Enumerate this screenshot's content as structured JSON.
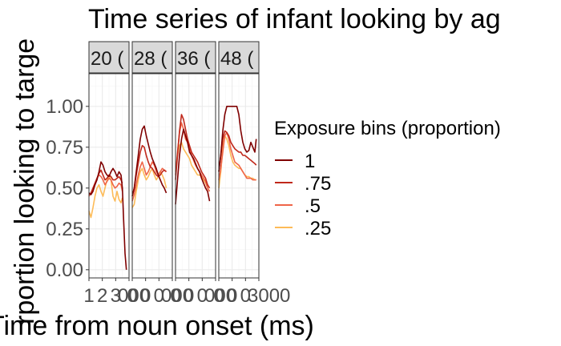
{
  "chart_data": {
    "type": "line",
    "title": "Time series of infant looking by ag",
    "xlabel": "Time from noun onset (ms)",
    "ylabel": "rportion looking to targe",
    "ylim": [
      -0.05,
      1.2
    ],
    "xlim": [
      0,
      3000
    ],
    "y_ticks": [
      0.0,
      0.25,
      0.5,
      0.75,
      1.0
    ],
    "y_tick_labels": [
      "0.00",
      "0.25",
      "0.50",
      "0.75",
      "1.00"
    ],
    "x_tick_values": [
      0,
      1000,
      2000,
      3000
    ],
    "x_tick_labels_per_panel": [
      [
        "1",
        "2",
        "3",
        "000"
      ],
      [
        "0",
        "0",
        "0",
        "000"
      ],
      [
        "0",
        "0",
        "0",
        "000"
      ],
      [
        "0",
        "0",
        "0",
        "3000"
      ]
    ],
    "grid": true,
    "legend": {
      "title": "Exposure bins (proportion)",
      "position": "right"
    },
    "facets": [
      {
        "label": "20 (",
        "series": [
          {
            "name": "1",
            "x": [
              0,
              150,
              300,
              450,
              600,
              750,
              900,
              1050,
              1200,
              1350,
              1500,
              1650,
              1800,
              1950,
              2100,
              2250,
              2400,
              2500,
              2600,
              2700,
              2800
            ],
            "y": [
              0.47,
              0.46,
              0.48,
              0.52,
              0.55,
              0.6,
              0.66,
              0.64,
              0.6,
              0.58,
              0.57,
              0.6,
              0.62,
              0.6,
              0.57,
              0.6,
              0.58,
              0.5,
              0.3,
              0.1,
              0.0
            ]
          },
          {
            "name": ".75",
            "x": [
              0,
              150,
              300,
              450,
              600,
              750,
              900,
              1050,
              1200,
              1350,
              1500,
              1650,
              1800,
              1950,
              2100,
              2250,
              2400,
              2500
            ],
            "y": [
              0.46,
              0.47,
              0.5,
              0.53,
              0.56,
              0.59,
              0.61,
              0.58,
              0.55,
              0.56,
              0.58,
              0.57,
              0.55,
              0.55,
              0.56,
              0.57,
              0.55,
              0.53
            ]
          },
          {
            "name": ".5",
            "x": [
              0,
              150,
              300,
              450,
              600,
              750,
              900,
              1050,
              1200,
              1350,
              1500,
              1650,
              1800,
              1950,
              2100,
              2250,
              2400,
              2500
            ],
            "y": [
              0.45,
              0.47,
              0.49,
              0.52,
              0.56,
              0.58,
              0.57,
              0.55,
              0.52,
              0.54,
              0.56,
              0.55,
              0.52,
              0.5,
              0.51,
              0.53,
              0.52,
              0.48
            ]
          },
          {
            "name": ".25",
            "x": [
              0,
              150,
              300,
              450,
              600,
              750,
              900,
              1050,
              1200,
              1350,
              1500,
              1650,
              1800,
              1950,
              2100,
              2250,
              2400,
              2500
            ],
            "y": [
              0.36,
              0.32,
              0.38,
              0.45,
              0.5,
              0.52,
              0.48,
              0.45,
              0.5,
              0.55,
              0.58,
              0.55,
              0.45,
              0.42,
              0.48,
              0.43,
              0.41,
              0.44
            ]
          }
        ]
      },
      {
        "label": "28 (",
        "series": [
          {
            "name": "1",
            "x": [
              0,
              150,
              300,
              450,
              600,
              750,
              900,
              1050,
              1200,
              1350,
              1500,
              1650,
              1800,
              1950,
              2100,
              2250,
              2400,
              2550
            ],
            "y": [
              0.45,
              0.5,
              0.6,
              0.7,
              0.8,
              0.86,
              0.88,
              0.82,
              0.77,
              0.72,
              0.68,
              0.65,
              0.62,
              0.58,
              0.55,
              0.52,
              0.5,
              0.47
            ]
          },
          {
            "name": ".75",
            "x": [
              0,
              150,
              300,
              450,
              600,
              750,
              900,
              1050,
              1200,
              1350,
              1500,
              1650,
              1800,
              1950,
              2100,
              2250,
              2400,
              2550
            ],
            "y": [
              0.45,
              0.5,
              0.58,
              0.65,
              0.72,
              0.76,
              0.75,
              0.7,
              0.66,
              0.63,
              0.62,
              0.6,
              0.58,
              0.57,
              0.58,
              0.6,
              0.61,
              0.6
            ]
          },
          {
            "name": ".5",
            "x": [
              0,
              150,
              300,
              450,
              600,
              750,
              900,
              1050,
              1200,
              1350,
              1500,
              1650,
              1800,
              1950,
              2100,
              2250,
              2400,
              2550
            ],
            "y": [
              0.42,
              0.46,
              0.52,
              0.58,
              0.63,
              0.66,
              0.62,
              0.58,
              0.6,
              0.63,
              0.66,
              0.64,
              0.6,
              0.58,
              0.6,
              0.62,
              0.61,
              0.6
            ]
          },
          {
            "name": ".25",
            "x": [
              0,
              150,
              300,
              450,
              600,
              750,
              900,
              1050,
              1200,
              1350,
              1500,
              1650,
              1800,
              1950,
              2100,
              2250,
              2400,
              2550
            ],
            "y": [
              0.38,
              0.4,
              0.48,
              0.55,
              0.6,
              0.62,
              0.58,
              0.55,
              0.57,
              0.6,
              0.62,
              0.58,
              0.55,
              0.57,
              0.6,
              0.58,
              0.55,
              0.5
            ]
          }
        ]
      },
      {
        "label": "36 (",
        "series": [
          {
            "name": "1",
            "x": [
              0,
              150,
              300,
              450,
              600,
              750,
              900,
              1050,
              1200,
              1350,
              1500,
              1650,
              1800,
              1950,
              2100,
              2250,
              2400,
              2550
            ],
            "y": [
              0.4,
              0.55,
              0.7,
              0.8,
              0.86,
              0.82,
              0.78,
              0.72,
              0.7,
              0.68,
              0.65,
              0.62,
              0.6,
              0.56,
              0.53,
              0.5,
              0.48,
              0.42
            ]
          },
          {
            "name": ".75",
            "x": [
              0,
              150,
              300,
              450,
              600,
              750,
              900,
              1050,
              1200,
              1350,
              1500,
              1650,
              1800,
              1950,
              2100,
              2250,
              2400,
              2550
            ],
            "y": [
              0.55,
              0.7,
              0.85,
              0.95,
              0.92,
              0.86,
              0.8,
              0.76,
              0.72,
              0.7,
              0.68,
              0.66,
              0.63,
              0.6,
              0.58,
              0.56,
              0.52,
              0.5
            ]
          },
          {
            "name": ".5",
            "x": [
              0,
              150,
              300,
              450,
              600,
              750,
              900,
              1050,
              1200,
              1350,
              1500,
              1650,
              1800,
              1950,
              2100,
              2250,
              2400,
              2550
            ],
            "y": [
              0.58,
              0.72,
              0.84,
              0.9,
              0.86,
              0.8,
              0.78,
              0.74,
              0.7,
              0.67,
              0.64,
              0.62,
              0.6,
              0.58,
              0.56,
              0.54,
              0.5,
              0.48
            ]
          },
          {
            "name": ".25",
            "x": [
              0,
              150,
              300,
              450,
              600,
              750,
              900,
              1050,
              1200,
              1350,
              1500,
              1650,
              1800,
              1950,
              2100,
              2250,
              2400,
              2550
            ],
            "y": [
              0.6,
              0.7,
              0.76,
              0.78,
              0.74,
              0.72,
              0.7,
              0.68,
              0.64,
              0.62,
              0.6,
              0.58,
              0.58,
              0.57,
              0.55,
              0.53,
              0.5,
              0.48
            ]
          }
        ]
      },
      {
        "label": "48 (",
        "series": [
          {
            "name": "1",
            "x": [
              0,
              150,
              300,
              450,
              600,
              750,
              900,
              1050,
              1200,
              1350,
              1500,
              1650,
              1800,
              1950,
              2100,
              2250,
              2400,
              2550,
              2700,
              2800
            ],
            "y": [
              0.6,
              0.7,
              0.85,
              0.95,
              1.0,
              1.0,
              1.0,
              1.0,
              1.0,
              1.0,
              0.95,
              0.85,
              0.78,
              0.74,
              0.72,
              0.73,
              0.78,
              0.75,
              0.72,
              0.8
            ]
          },
          {
            "name": ".75",
            "x": [
              0,
              150,
              300,
              450,
              600,
              750,
              900,
              1050,
              1200,
              1350,
              1500,
              1650,
              1800,
              1950,
              2100,
              2250,
              2400,
              2550,
              2700,
              2800
            ],
            "y": [
              0.6,
              0.7,
              0.8,
              0.85,
              0.84,
              0.82,
              0.78,
              0.76,
              0.74,
              0.73,
              0.72,
              0.72,
              0.7,
              0.7,
              0.69,
              0.68,
              0.67,
              0.66,
              0.65,
              0.64
            ]
          },
          {
            "name": ".5",
            "x": [
              0,
              150,
              300,
              450,
              600,
              750,
              900,
              1050,
              1200,
              1350,
              1500,
              1650,
              1800,
              1950,
              2100,
              2250,
              2400,
              2550,
              2700,
              2800
            ],
            "y": [
              0.55,
              0.62,
              0.72,
              0.82,
              0.84,
              0.8,
              0.74,
              0.7,
              0.66,
              0.65,
              0.64,
              0.62,
              0.6,
              0.58,
              0.56,
              0.56,
              0.56,
              0.55,
              0.55,
              0.55
            ]
          },
          {
            "name": ".25",
            "x": [
              0,
              150,
              300,
              450,
              600,
              750,
              900,
              1050,
              1200,
              1350,
              1500,
              1650,
              1800,
              1950,
              2100,
              2250,
              2400,
              2550,
              2700,
              2800
            ],
            "y": [
              0.5,
              0.6,
              0.75,
              0.82,
              0.8,
              0.76,
              0.7,
              0.66,
              0.64,
              0.63,
              0.62,
              0.62,
              0.6,
              0.58,
              0.57,
              0.57,
              0.56,
              0.56,
              0.55,
              0.55
            ]
          }
        ]
      }
    ]
  },
  "colors": {
    "1": "#7f0000",
    ".75": "#c0281b",
    ".5": "#ef6548",
    ".25": "#fdbb58",
    "strip_fill": "#d9d9d9",
    "grid_major": "#ebebeb",
    "grid_minor": "#f5f5f5",
    "tick_text": "#4d4d4d"
  }
}
